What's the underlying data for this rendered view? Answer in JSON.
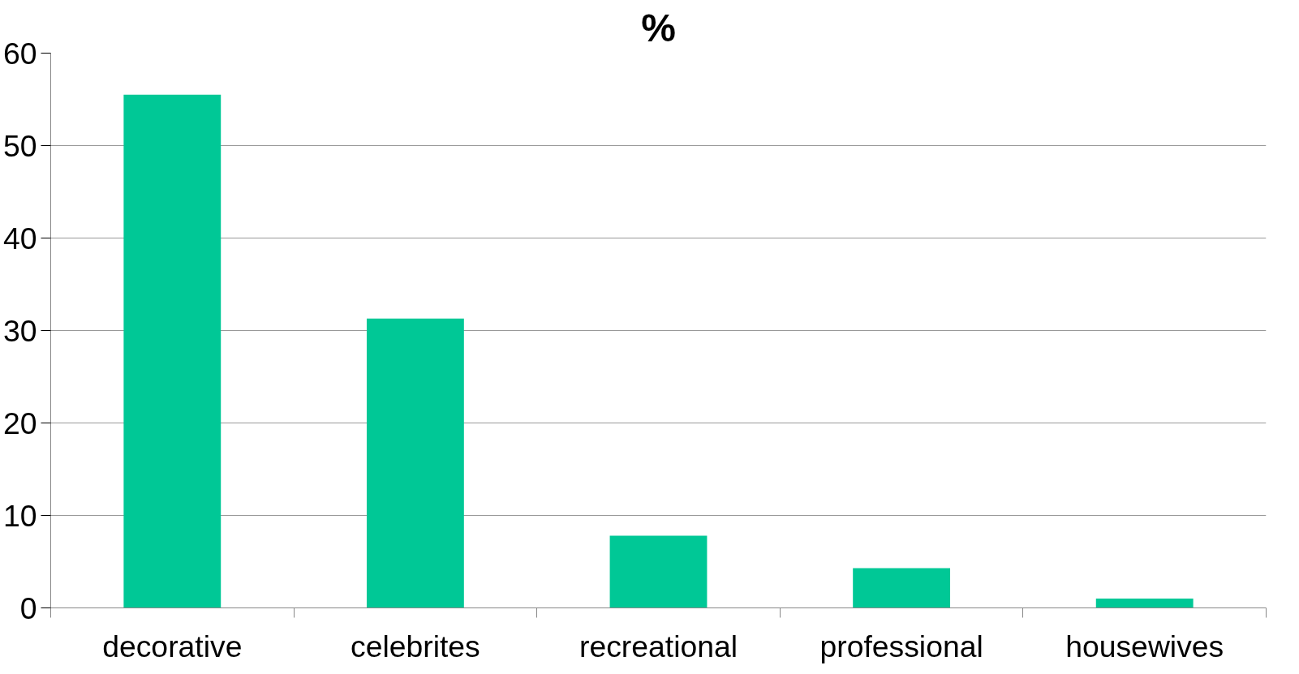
{
  "chart_data": {
    "type": "bar",
    "title": "%",
    "categories": [
      "decorative",
      "celebrites",
      "recreational",
      "professional",
      "housewives"
    ],
    "values": [
      55.5,
      31.3,
      7.8,
      4.3,
      1.0
    ],
    "color": "#00c896",
    "ylim": [
      0,
      60
    ],
    "yticks": [
      0,
      10,
      20,
      30,
      40,
      50,
      60
    ],
    "grid": "y"
  }
}
